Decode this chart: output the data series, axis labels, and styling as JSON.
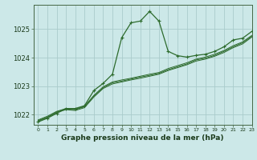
{
  "title": "Graphe pression niveau de la mer (hPa)",
  "background_color": "#cce8e8",
  "grid_color": "#aacccc",
  "line_color": "#2d6b2d",
  "xlim": [
    -0.5,
    23
  ],
  "ylim": [
    1021.65,
    1025.85
  ],
  "yticks": [
    1022,
    1023,
    1024,
    1025
  ],
  "xtick_labels": [
    "0",
    "1",
    "2",
    "3",
    "4",
    "5",
    "6",
    "7",
    "8",
    "9",
    "10",
    "11",
    "12",
    "13",
    "14",
    "15",
    "16",
    "17",
    "18",
    "19",
    "20",
    "21",
    "22",
    "23"
  ],
  "series_main": [
    1021.75,
    1021.88,
    1022.05,
    1022.22,
    1022.22,
    1022.32,
    1022.85,
    1023.1,
    1023.42,
    1024.7,
    1025.22,
    1025.28,
    1025.62,
    1025.28,
    1024.22,
    1024.07,
    1024.02,
    1024.08,
    1024.12,
    1024.22,
    1024.38,
    1024.62,
    1024.68,
    1024.92
  ],
  "series_others": [
    [
      1021.78,
      1021.9,
      1022.08,
      1022.18,
      1022.15,
      1022.25,
      1022.62,
      1022.92,
      1023.08,
      1023.15,
      1023.22,
      1023.28,
      1023.35,
      1023.42,
      1023.55,
      1023.65,
      1023.75,
      1023.88,
      1023.95,
      1024.05,
      1024.18,
      1024.35,
      1024.48,
      1024.72
    ],
    [
      1021.8,
      1021.92,
      1022.1,
      1022.2,
      1022.18,
      1022.28,
      1022.65,
      1022.95,
      1023.12,
      1023.18,
      1023.25,
      1023.32,
      1023.38,
      1023.45,
      1023.58,
      1023.68,
      1023.78,
      1023.92,
      1023.98,
      1024.08,
      1024.22,
      1024.38,
      1024.52,
      1024.75
    ],
    [
      1021.82,
      1021.95,
      1022.12,
      1022.22,
      1022.2,
      1022.3,
      1022.68,
      1022.98,
      1023.15,
      1023.22,
      1023.28,
      1023.35,
      1023.42,
      1023.48,
      1023.62,
      1023.72,
      1023.82,
      1023.95,
      1024.02,
      1024.12,
      1024.25,
      1024.42,
      1024.55,
      1024.78
    ]
  ]
}
